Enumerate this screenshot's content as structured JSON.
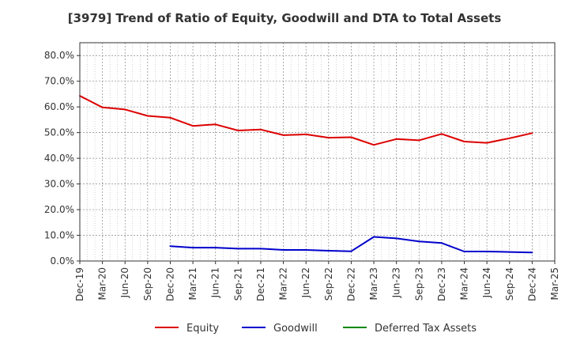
{
  "chart_data": {
    "type": "line",
    "title": "[3979]  Trend of Ratio of Equity, Goodwill and DTA to Total Assets",
    "xlabel": "",
    "ylabel": "",
    "categories": [
      "Dec-19",
      "Mar-20",
      "Jun-20",
      "Sep-20",
      "Dec-20",
      "Mar-21",
      "Jun-21",
      "Sep-21",
      "Dec-21",
      "Mar-22",
      "Jun-22",
      "Sep-22",
      "Dec-22",
      "Mar-23",
      "Jun-23",
      "Sep-23",
      "Dec-23",
      "Mar-24",
      "Jun-24",
      "Sep-24",
      "Dec-24",
      "Mar-25"
    ],
    "ylim": [
      0,
      85
    ],
    "yticks": [
      0,
      10,
      20,
      30,
      40,
      50,
      60,
      70,
      80
    ],
    "ytick_labels": [
      "0.0%",
      "10.0%",
      "20.0%",
      "30.0%",
      "40.0%",
      "50.0%",
      "60.0%",
      "70.0%",
      "80.0%"
    ],
    "grid": true,
    "legend_position": "bottom",
    "series": [
      {
        "name": "Equity",
        "color": "#dd0000",
        "values": [
          64.3,
          59.8,
          59.0,
          56.5,
          55.8,
          52.6,
          53.2,
          50.8,
          51.2,
          49.0,
          49.3,
          48.0,
          48.2,
          45.2,
          47.5,
          47.0,
          49.5,
          46.5,
          46.0,
          47.8,
          49.8,
          null
        ]
      },
      {
        "name": "Goodwill",
        "color": "#0000cc",
        "values": [
          null,
          null,
          null,
          null,
          5.8,
          5.2,
          5.2,
          4.8,
          4.8,
          4.3,
          4.3,
          4.0,
          3.8,
          9.4,
          8.8,
          7.6,
          7.0,
          3.7,
          3.7,
          3.5,
          3.3,
          null
        ]
      },
      {
        "name": "Deferred Tax Assets",
        "color": "#008800",
        "values": [
          null,
          null,
          null,
          null,
          null,
          null,
          null,
          null,
          null,
          null,
          null,
          null,
          null,
          null,
          null,
          null,
          null,
          null,
          null,
          null,
          null,
          null
        ]
      }
    ]
  }
}
